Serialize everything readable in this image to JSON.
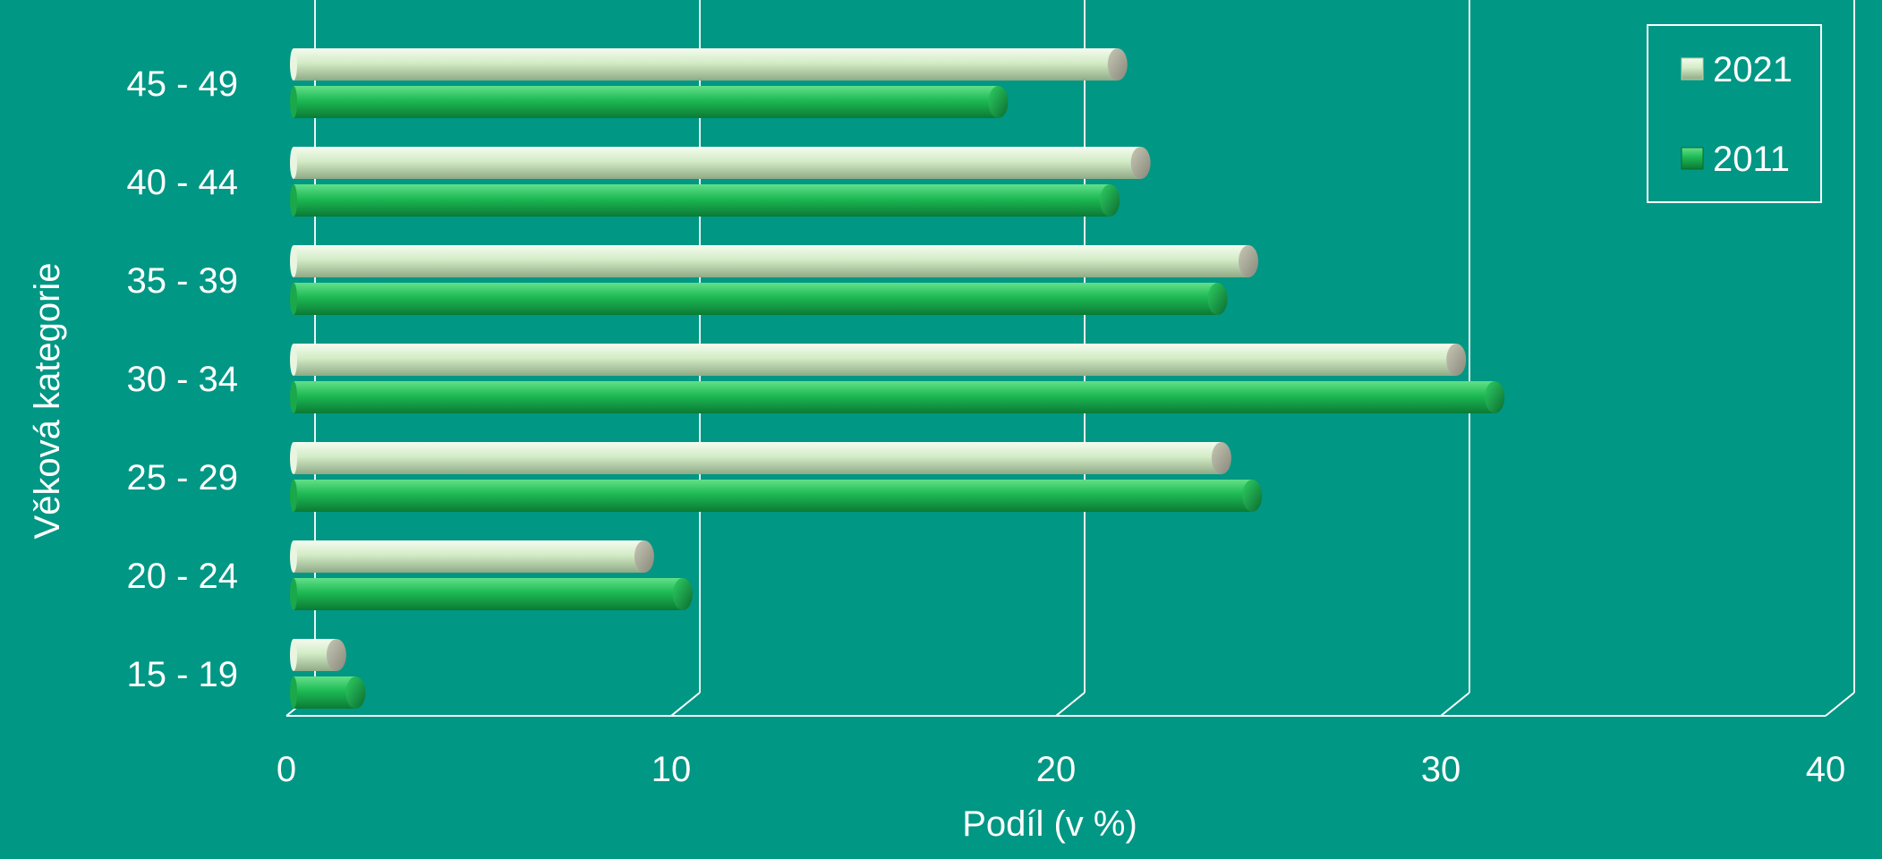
{
  "chart_data": {
    "type": "bar",
    "orientation": "horizontal",
    "categories": [
      "15 - 19",
      "20 - 24",
      "25 - 29",
      "30 - 34",
      "35 - 39",
      "40 - 44",
      "45 - 49"
    ],
    "series": [
      {
        "name": "2021",
        "values": [
          1.3,
          9.3,
          24.3,
          30.4,
          25.0,
          22.2,
          21.6
        ],
        "color": "#cfe8c2"
      },
      {
        "name": "2011",
        "values": [
          1.8,
          10.3,
          25.1,
          31.4,
          24.2,
          21.4,
          18.5
        ],
        "color": "#1db954"
      }
    ],
    "xlabel": "Podíl (v %)",
    "ylabel": "Věková kategorie",
    "xlim": [
      0,
      40
    ],
    "xticks": [
      "0",
      "10",
      "20",
      "30",
      "40"
    ],
    "grid": true,
    "legend_position": "top-right",
    "background_color": "#009784"
  }
}
